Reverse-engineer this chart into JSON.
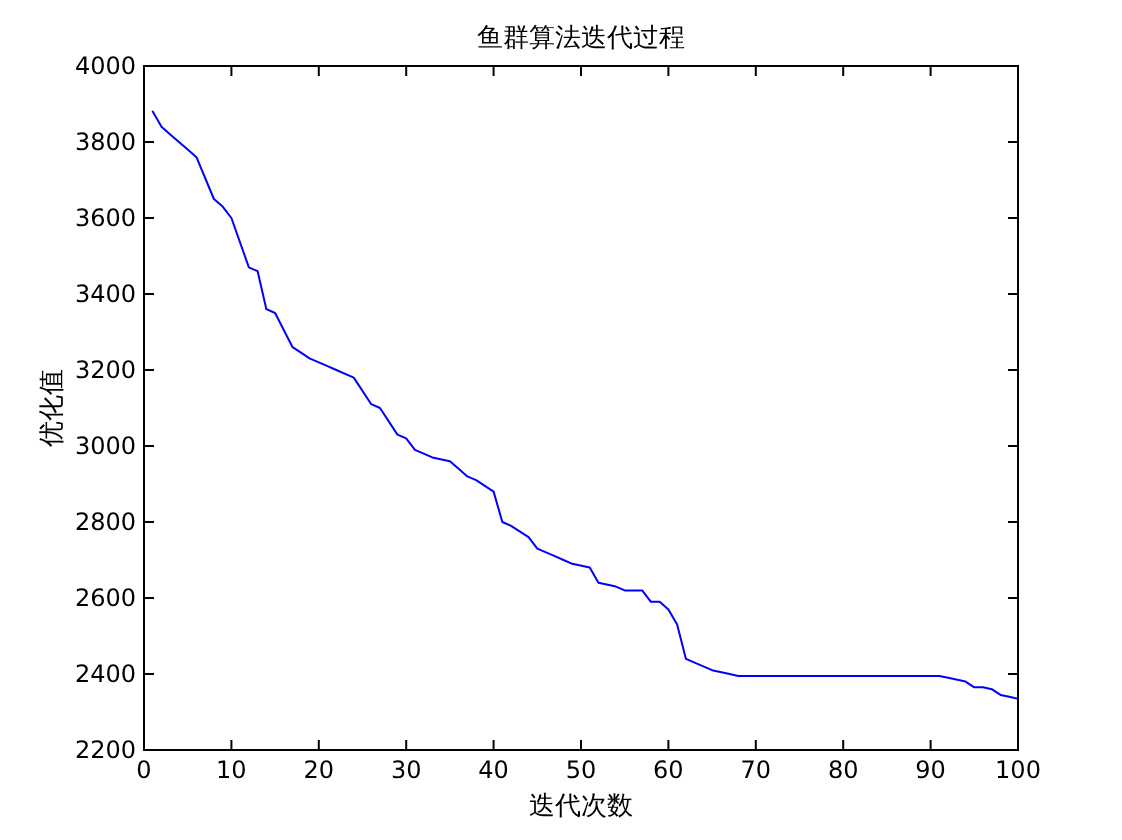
{
  "chart_data": {
    "type": "line",
    "title": "鱼群算法迭代过程",
    "xlabel": "迭代次数",
    "ylabel": "优化值",
    "xlim": [
      0,
      100
    ],
    "ylim": [
      2200,
      4000
    ],
    "xticks": [
      0,
      10,
      20,
      30,
      40,
      50,
      60,
      70,
      80,
      90,
      100
    ],
    "yticks": [
      2200,
      2400,
      2600,
      2800,
      3000,
      3200,
      3400,
      3600,
      3800,
      4000
    ],
    "grid": false,
    "marker": "none",
    "line_style": "solid",
    "series": [
      {
        "color": "#0000ff",
        "x": [
          1,
          2,
          3,
          5,
          6,
          8,
          9,
          10,
          12,
          13,
          14,
          15,
          17,
          19,
          21,
          22,
          24,
          26,
          27,
          29,
          30,
          31,
          33,
          35,
          36,
          37,
          38,
          40,
          41,
          42,
          44,
          45,
          47,
          48,
          49,
          51,
          52,
          54,
          55,
          57,
          58,
          59,
          60,
          61,
          62,
          63,
          65,
          67,
          68,
          91,
          92,
          94,
          95,
          96,
          97,
          98,
          99,
          100
        ],
        "values": [
          3880,
          3840,
          3820,
          3780,
          3760,
          3650,
          3630,
          3600,
          3470,
          3460,
          3360,
          3350,
          3260,
          3230,
          3210,
          3200,
          3180,
          3110,
          3100,
          3030,
          3020,
          2990,
          2970,
          2960,
          2940,
          2920,
          2910,
          2880,
          2800,
          2790,
          2760,
          2730,
          2710,
          2700,
          2690,
          2680,
          2640,
          2630,
          2620,
          2620,
          2590,
          2590,
          2570,
          2530,
          2440,
          2430,
          2410,
          2400,
          2395,
          2395,
          2390,
          2380,
          2365,
          2365,
          2360,
          2345,
          2340,
          2335
        ]
      }
    ]
  }
}
